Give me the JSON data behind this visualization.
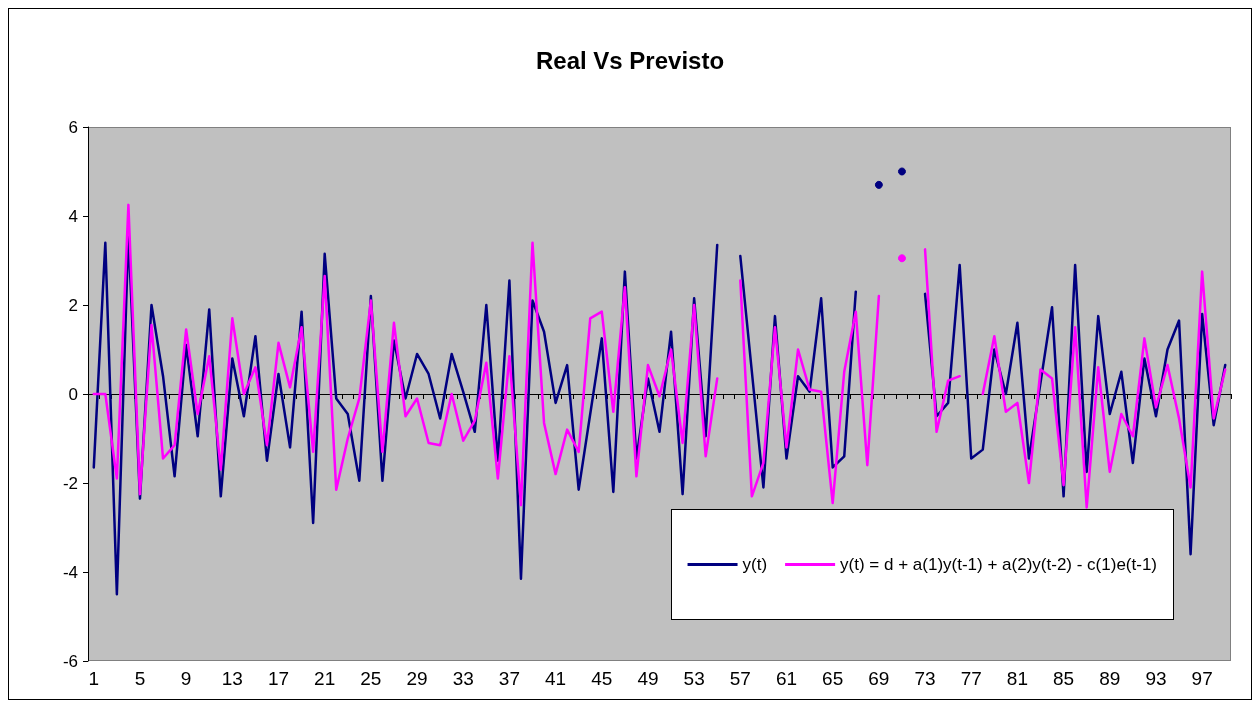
{
  "chart_data": {
    "type": "line",
    "title": "Real Vs Previsto",
    "categories": [
      "1",
      null,
      null,
      null,
      "5",
      null,
      null,
      null,
      "9",
      null,
      null,
      null,
      "13",
      null,
      null,
      null,
      "17",
      null,
      null,
      null,
      "21",
      null,
      null,
      null,
      "25",
      null,
      null,
      null,
      "29",
      null,
      null,
      null,
      "33",
      null,
      null,
      null,
      "37",
      null,
      null,
      null,
      "41",
      null,
      null,
      null,
      "45",
      null,
      null,
      null,
      "49",
      null,
      null,
      null,
      "53",
      null,
      null,
      null,
      "57",
      null,
      null,
      null,
      "61",
      null,
      null,
      null,
      "65",
      null,
      null,
      null,
      "69",
      null,
      null,
      null,
      "73",
      null,
      null,
      null,
      "77",
      null,
      null,
      null,
      "81",
      null,
      null,
      null,
      "85",
      null,
      null,
      null,
      "89",
      null,
      null,
      null,
      "93",
      null,
      null,
      null,
      "97",
      null,
      null
    ],
    "series": [
      {
        "name": "y(t)",
        "color": "#000080",
        "values": [
          -1.65,
          3.4,
          -4.5,
          3.6,
          -2.35,
          2.0,
          0.4,
          -1.85,
          1.1,
          -0.95,
          1.9,
          -2.3,
          0.8,
          -0.5,
          1.3,
          -1.5,
          0.45,
          -1.2,
          1.85,
          -2.9,
          3.15,
          -0.1,
          -0.45,
          -1.95,
          2.2,
          -1.95,
          1.2,
          -0.1,
          0.9,
          0.45,
          -0.55,
          0.9,
          0.05,
          -0.85,
          2.0,
          -1.5,
          2.55,
          -4.15,
          2.1,
          1.4,
          -0.2,
          0.65,
          -2.15,
          -0.45,
          1.25,
          -2.2,
          2.75,
          -1.45,
          0.35,
          -0.85,
          1.4,
          -2.25,
          2.15,
          -0.95,
          3.35,
          null,
          3.1,
          0.5,
          -2.1,
          1.75,
          -1.45,
          0.4,
          0.05,
          2.15,
          -1.65,
          -1.4,
          2.3,
          null,
          4.7,
          null,
          5.0,
          null,
          2.25,
          -0.5,
          -0.2,
          2.9,
          -1.45,
          -1.25,
          1.0,
          0.0,
          1.6,
          -1.45,
          0.25,
          1.95,
          -2.3,
          2.9,
          -1.75,
          1.75,
          -0.45,
          0.5,
          -1.55,
          0.8,
          -0.5,
          1.0,
          1.65,
          -3.6,
          1.8,
          -0.7,
          0.65
        ]
      },
      {
        "name": "y(t) = d + a(1)y(t-1) + a(2)y(t-2) - c(1)e(t-1)",
        "color": "#ff00ff",
        "values": [
          0.0,
          0.0,
          -1.9,
          4.25,
          -2.25,
          1.55,
          -1.45,
          -1.15,
          1.45,
          -0.45,
          0.85,
          -1.7,
          1.7,
          0.0,
          0.6,
          -1.15,
          1.15,
          0.15,
          1.5,
          -1.3,
          2.65,
          -2.15,
          -1.0,
          -0.1,
          2.1,
          -1.3,
          1.6,
          -0.5,
          -0.1,
          -1.1,
          -1.15,
          0.0,
          -1.05,
          -0.6,
          0.7,
          -1.9,
          0.85,
          -2.5,
          3.4,
          -0.65,
          -1.8,
          -0.8,
          -1.3,
          1.7,
          1.85,
          -0.4,
          2.4,
          -1.85,
          0.65,
          -0.05,
          1.0,
          -1.1,
          2.0,
          -1.4,
          0.35,
          null,
          2.55,
          -2.3,
          -1.55,
          1.5,
          -1.2,
          1.0,
          0.1,
          0.05,
          -2.45,
          0.5,
          1.85,
          -1.6,
          2.2,
          null,
          3.05,
          null,
          3.25,
          -0.85,
          0.3,
          0.4,
          null,
          0.0,
          1.3,
          -0.4,
          -0.2,
          -2.0,
          0.55,
          0.35,
          -2.05,
          1.5,
          -2.55,
          0.6,
          -1.75,
          -0.45,
          -0.95,
          1.25,
          -0.3,
          0.65,
          -0.55,
          -2.1,
          2.75,
          -0.55,
          0.55
        ]
      }
    ],
    "ylim": [
      -6,
      6
    ],
    "yticks": [
      -6,
      -4,
      -2,
      0,
      2,
      4,
      6
    ],
    "legend": "bottom right",
    "marker": "none",
    "line_style": "solid"
  }
}
